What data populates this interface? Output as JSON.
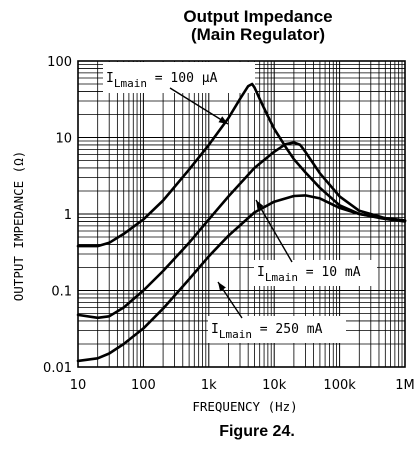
{
  "chart_data": {
    "type": "line",
    "title_line1": "Output Impedance",
    "title_line2": "(Main Regulator)",
    "xlabel": "FREQUENCY (Hz)",
    "ylabel": "OUTPUT IMPEDANCE (Ω)",
    "caption": "Figure 24.",
    "x_scale": "log",
    "y_scale": "log",
    "xlim": [
      10,
      1000000
    ],
    "ylim": [
      0.01,
      100
    ],
    "grid": true,
    "x_ticks": [
      {
        "value": 10,
        "label": "10"
      },
      {
        "value": 100,
        "label": "100"
      },
      {
        "value": 1000,
        "label": "1k"
      },
      {
        "value": 10000,
        "label": "10k"
      },
      {
        "value": 100000,
        "label": "100k"
      },
      {
        "value": 1000000,
        "label": "1M"
      }
    ],
    "y_ticks": [
      {
        "value": 0.01,
        "label": "0.01"
      },
      {
        "value": 0.1,
        "label": "0.1"
      },
      {
        "value": 1,
        "label": "1"
      },
      {
        "value": 10,
        "label": "10"
      },
      {
        "value": 100,
        "label": "100"
      }
    ],
    "series": [
      {
        "label_main": "I",
        "label_sub": "Lmain",
        "label_value": " = 100 μA",
        "points": [
          [
            10,
            0.38
          ],
          [
            20,
            0.38
          ],
          [
            30,
            0.42
          ],
          [
            50,
            0.55
          ],
          [
            100,
            0.85
          ],
          [
            200,
            1.5
          ],
          [
            500,
            3.8
          ],
          [
            1000,
            8
          ],
          [
            2000,
            18
          ],
          [
            3000,
            32
          ],
          [
            4000,
            47
          ],
          [
            4600,
            50
          ],
          [
            5000,
            45
          ],
          [
            6000,
            32
          ],
          [
            8000,
            19
          ],
          [
            10000,
            13
          ],
          [
            15000,
            7.5
          ],
          [
            20000,
            5.2
          ],
          [
            30000,
            3.5
          ],
          [
            50000,
            2.2
          ],
          [
            100000,
            1.3
          ],
          [
            200000,
            1.0
          ],
          [
            500000,
            0.86
          ],
          [
            1000000,
            0.8
          ]
        ]
      },
      {
        "label_main": "I",
        "label_sub": "Lmain",
        "label_value": " = 10 mA",
        "points": [
          [
            10,
            0.048
          ],
          [
            20,
            0.044
          ],
          [
            30,
            0.046
          ],
          [
            50,
            0.06
          ],
          [
            100,
            0.1
          ],
          [
            200,
            0.18
          ],
          [
            500,
            0.42
          ],
          [
            1000,
            0.85
          ],
          [
            2000,
            1.7
          ],
          [
            5000,
            4
          ],
          [
            10000,
            6.5
          ],
          [
            15000,
            8.2
          ],
          [
            20000,
            8.6
          ],
          [
            25000,
            8
          ],
          [
            30000,
            6.5
          ],
          [
            40000,
            4.5
          ],
          [
            50000,
            3.4
          ],
          [
            100000,
            1.7
          ],
          [
            200000,
            1.1
          ],
          [
            500000,
            0.88
          ],
          [
            1000000,
            0.82
          ]
        ]
      },
      {
        "label_main": "I",
        "label_sub": "Lmain",
        "label_value": " = 250 mA",
        "points": [
          [
            10,
            0.012
          ],
          [
            20,
            0.013
          ],
          [
            30,
            0.015
          ],
          [
            50,
            0.02
          ],
          [
            100,
            0.032
          ],
          [
            200,
            0.058
          ],
          [
            500,
            0.14
          ],
          [
            1000,
            0.28
          ],
          [
            2000,
            0.52
          ],
          [
            5000,
            1.05
          ],
          [
            10000,
            1.45
          ],
          [
            20000,
            1.72
          ],
          [
            30000,
            1.75
          ],
          [
            50000,
            1.6
          ],
          [
            100000,
            1.2
          ],
          [
            200000,
            1.0
          ],
          [
            500000,
            0.88
          ],
          [
            1000000,
            0.82
          ]
        ]
      }
    ]
  }
}
